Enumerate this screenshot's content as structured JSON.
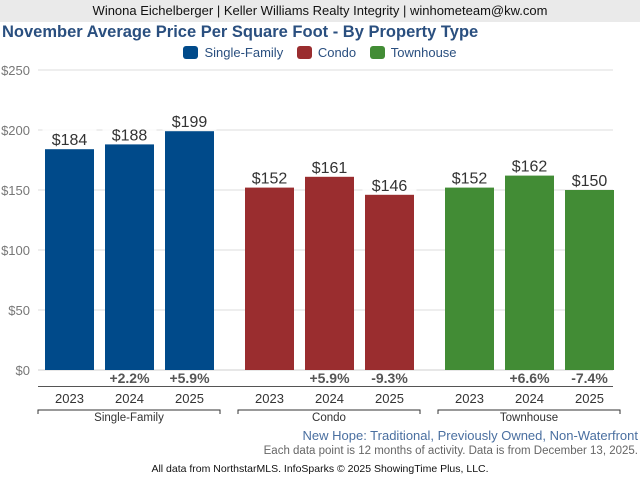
{
  "header": {
    "banner": "Winona Eichelberger | Keller Williams Realty Integrity | winhometeam@kw.com"
  },
  "chart_data": {
    "type": "bar",
    "title": "November Average Price Per Square Foot - By Property Type",
    "xlabel": "",
    "ylabel": "",
    "ylim": [
      0,
      250
    ],
    "yticks": [
      0,
      50,
      100,
      150,
      200,
      250
    ],
    "ytick_labels": [
      "$0",
      "$50",
      "$100",
      "$150",
      "$200",
      "$250"
    ],
    "grid": true,
    "legend_position": "top-center",
    "groups": [
      {
        "name": "Single-Family",
        "color": "#004a8a",
        "categories": [
          "2023",
          "2024",
          "2025"
        ],
        "values": [
          184,
          188,
          199
        ],
        "value_labels": [
          "$184",
          "$188",
          "$199"
        ],
        "change_labels": [
          "",
          "+2.2%",
          "+5.9%"
        ]
      },
      {
        "name": "Condo",
        "color": "#9a2d2f",
        "categories": [
          "2023",
          "2024",
          "2025"
        ],
        "values": [
          152,
          161,
          146
        ],
        "value_labels": [
          "$152",
          "$161",
          "$146"
        ],
        "change_labels": [
          "",
          "+5.9%",
          "-9.3%"
        ]
      },
      {
        "name": "Townhouse",
        "color": "#428c35",
        "categories": [
          "2023",
          "2024",
          "2025"
        ],
        "values": [
          152,
          162,
          150
        ],
        "value_labels": [
          "$152",
          "$162",
          "$150"
        ],
        "change_labels": [
          "",
          "+6.6%",
          "-7.4%"
        ]
      }
    ]
  },
  "legend": [
    {
      "label": "Single-Family",
      "color": "#004a8a"
    },
    {
      "label": "Condo",
      "color": "#9a2d2f"
    },
    {
      "label": "Townhouse",
      "color": "#428c35"
    }
  ],
  "footer": {
    "subtitle": "New Hope: Traditional, Previously Owned, Non-Waterfront",
    "note": "Each data point is 12 months of activity. Data is from December 13, 2025.",
    "credit": "All data from NorthstarMLS. InfoSparks © 2025 ShowingTime Plus, LLC."
  }
}
